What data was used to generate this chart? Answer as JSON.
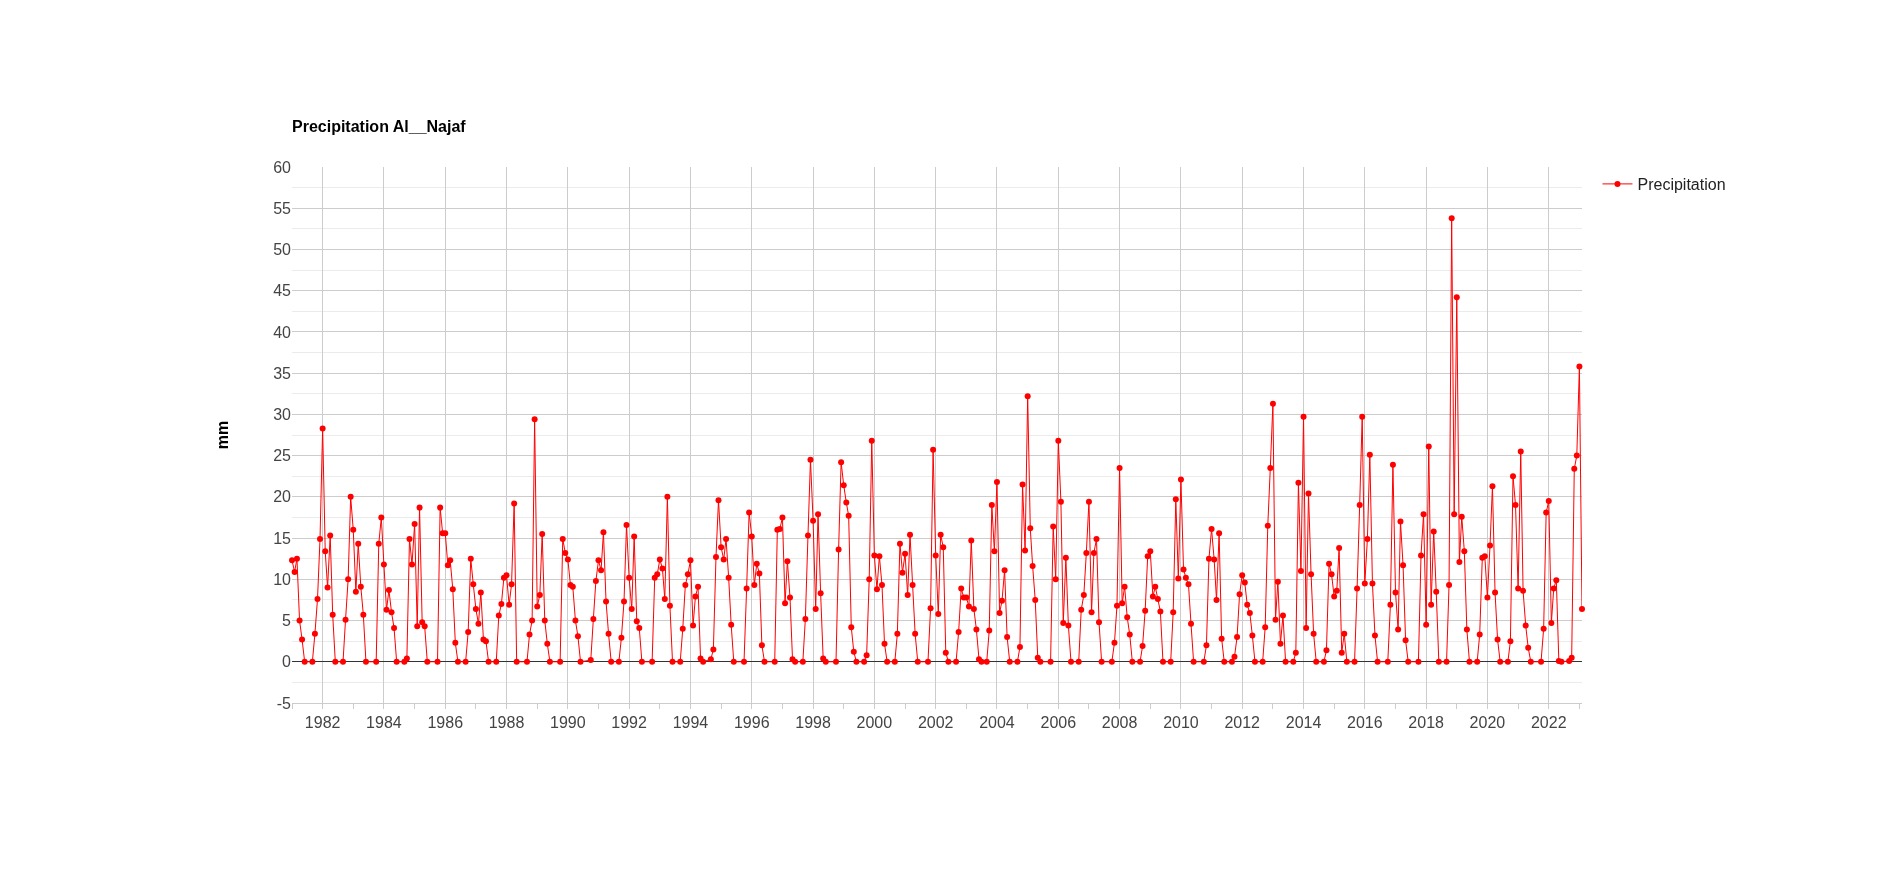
{
  "chart_data": {
    "type": "line",
    "title": "Precipitation Al__Najaf",
    "ylabel": "mm",
    "xlim": [
      "1981-01",
      "2023-02"
    ],
    "xticks": [
      {
        "value": "1981",
        "label": null
      },
      "1982",
      {
        "value": "1983",
        "label": null
      },
      "1984",
      {
        "value": "1985",
        "label": null
      },
      "1986",
      {
        "value": "1987",
        "label": null
      },
      "1988",
      {
        "value": "1989",
        "label": null
      },
      "1990",
      {
        "value": "1991",
        "label": null
      },
      "1992",
      {
        "value": "1993",
        "label": null
      },
      "1994",
      {
        "value": "1995",
        "label": null
      },
      "1996",
      {
        "value": "1997",
        "label": null
      },
      "1998",
      {
        "value": "1999",
        "label": null
      },
      "2000",
      {
        "value": "2001",
        "label": null
      },
      "2002",
      {
        "value": "2003",
        "label": null
      },
      "2004",
      {
        "value": "2005",
        "label": null
      },
      "2006",
      {
        "value": "2007",
        "label": null
      },
      "2008",
      {
        "value": "2009",
        "label": null
      },
      "2010",
      {
        "value": "2011",
        "label": null
      },
      "2012",
      {
        "value": "2013",
        "label": null
      },
      "2014",
      {
        "value": "2015",
        "label": null
      },
      "2016",
      {
        "value": "2017",
        "label": null
      },
      "2018",
      {
        "value": "2019",
        "label": null
      },
      "2020",
      {
        "value": "2021",
        "label": null
      },
      "2022",
      {
        "value": "2023",
        "label": null
      }
    ],
    "ylim": [
      -5,
      60
    ],
    "yticks": [
      -5,
      0,
      5,
      10,
      15,
      20,
      25,
      30,
      35,
      40,
      45,
      50,
      55,
      60
    ],
    "grid": true,
    "legend": "top right",
    "marker": "circle",
    "line_style": "solid",
    "series": [
      {
        "name": "Precipitation",
        "color": "#ff0000",
        "x": [
          "1981-01",
          "1981-02",
          "1981-03",
          "1981-04",
          "1981-05",
          "1981-06",
          "1981-09",
          "1981-10",
          "1981-11",
          "1981-12",
          "1982-01",
          "1982-02",
          "1982-03",
          "1982-04",
          "1982-05",
          "1982-06",
          "1982-09",
          "1982-10",
          "1982-11",
          "1982-12",
          "1983-01",
          "1983-02",
          "1983-03",
          "1983-04",
          "1983-05",
          "1983-06",
          "1983-10",
          "1983-11",
          "1983-12",
          "1984-01",
          "1984-02",
          "1984-03",
          "1984-04",
          "1984-05",
          "1984-06",
          "1984-09",
          "1984-10",
          "1984-11",
          "1984-12",
          "1985-01",
          "1985-02",
          "1985-03",
          "1985-04",
          "1985-05",
          "1985-06",
          "1985-10",
          "1985-11",
          "1985-12",
          "1986-01",
          "1986-02",
          "1986-03",
          "1986-04",
          "1986-05",
          "1986-06",
          "1986-09",
          "1986-10",
          "1986-11",
          "1986-12",
          "1987-01",
          "1987-02",
          "1987-03",
          "1987-04",
          "1987-05",
          "1987-06",
          "1987-09",
          "1987-10",
          "1987-11",
          "1987-12",
          "1988-01",
          "1988-02",
          "1988-03",
          "1988-04",
          "1988-05",
          "1988-09",
          "1988-10",
          "1988-11",
          "1988-12",
          "1989-01",
          "1989-02",
          "1989-03",
          "1989-04",
          "1989-05",
          "1989-06",
          "1989-10",
          "1989-11",
          "1989-12",
          "1990-01",
          "1990-02",
          "1990-03",
          "1990-04",
          "1990-05",
          "1990-06",
          "1990-10",
          "1990-11",
          "1990-12",
          "1991-01",
          "1991-02",
          "1991-03",
          "1991-04",
          "1991-05",
          "1991-06",
          "1991-09",
          "1991-10",
          "1991-11",
          "1991-12",
          "1992-01",
          "1992-02",
          "1992-03",
          "1992-04",
          "1992-05",
          "1992-06",
          "1992-10",
          "1992-11",
          "1992-12",
          "1993-01",
          "1993-02",
          "1993-03",
          "1993-04",
          "1993-05",
          "1993-06",
          "1993-09",
          "1993-10",
          "1993-11",
          "1993-12",
          "1994-01",
          "1994-02",
          "1994-03",
          "1994-04",
          "1994-05",
          "1994-06",
          "1994-09",
          "1994-10",
          "1994-11",
          "1994-12",
          "1995-01",
          "1995-02",
          "1995-03",
          "1995-04",
          "1995-05",
          "1995-06",
          "1995-10",
          "1995-11",
          "1995-12",
          "1996-01",
          "1996-02",
          "1996-03",
          "1996-04",
          "1996-05",
          "1996-06",
          "1996-10",
          "1996-11",
          "1996-12",
          "1997-01",
          "1997-02",
          "1997-03",
          "1997-04",
          "1997-05",
          "1997-06",
          "1997-09",
          "1997-10",
          "1997-11",
          "1997-12",
          "1998-01",
          "1998-02",
          "1998-03",
          "1998-04",
          "1998-05",
          "1998-06",
          "1998-10",
          "1998-11",
          "1998-12",
          "1999-01",
          "1999-02",
          "1999-03",
          "1999-04",
          "1999-05",
          "1999-06",
          "1999-09",
          "1999-10",
          "1999-11",
          "1999-12",
          "2000-01",
          "2000-02",
          "2000-03",
          "2000-04",
          "2000-05",
          "2000-06",
          "2000-09",
          "2000-10",
          "2000-11",
          "2000-12",
          "2001-01",
          "2001-02",
          "2001-03",
          "2001-04",
          "2001-05",
          "2001-06",
          "2001-10",
          "2001-11",
          "2001-12",
          "2002-01",
          "2002-02",
          "2002-03",
          "2002-04",
          "2002-05",
          "2002-06",
          "2002-09",
          "2002-10",
          "2002-11",
          "2002-12",
          "2003-01",
          "2003-02",
          "2003-03",
          "2003-04",
          "2003-05",
          "2003-06",
          "2003-07",
          "2003-09",
          "2003-10",
          "2003-11",
          "2003-12",
          "2004-01",
          "2004-02",
          "2004-03",
          "2004-04",
          "2004-05",
          "2004-06",
          "2004-09",
          "2004-10",
          "2004-11",
          "2004-12",
          "2005-01",
          "2005-02",
          "2005-03",
          "2005-04",
          "2005-05",
          "2005-06",
          "2005-10",
          "2005-11",
          "2005-12",
          "2006-01",
          "2006-02",
          "2006-03",
          "2006-04",
          "2006-05",
          "2006-06",
          "2006-09",
          "2006-10",
          "2006-11",
          "2006-12",
          "2007-01",
          "2007-02",
          "2007-03",
          "2007-04",
          "2007-05",
          "2007-06",
          "2007-10",
          "2007-11",
          "2007-12",
          "2008-01",
          "2008-02",
          "2008-03",
          "2008-04",
          "2008-05",
          "2008-06",
          "2008-09",
          "2008-10",
          "2008-11",
          "2008-12",
          "2009-01",
          "2009-02",
          "2009-03",
          "2009-04",
          "2009-05",
          "2009-06",
          "2009-09",
          "2009-10",
          "2009-11",
          "2009-12",
          "2010-01",
          "2010-02",
          "2010-03",
          "2010-04",
          "2010-05",
          "2010-06",
          "2010-10",
          "2010-11",
          "2010-12",
          "2011-01",
          "2011-02",
          "2011-03",
          "2011-04",
          "2011-05",
          "2011-06",
          "2011-09",
          "2011-10",
          "2011-11",
          "2011-12",
          "2012-01",
          "2012-02",
          "2012-03",
          "2012-04",
          "2012-05",
          "2012-06",
          "2012-09",
          "2012-10",
          "2012-11",
          "2012-12",
          "2013-01",
          "2013-02",
          "2013-03",
          "2013-04",
          "2013-05",
          "2013-06",
          "2013-09",
          "2013-10",
          "2013-11",
          "2013-12",
          "2014-01",
          "2014-02",
          "2014-03",
          "2014-04",
          "2014-05",
          "2014-06",
          "2014-09",
          "2014-10",
          "2014-11",
          "2014-12",
          "2015-01",
          "2015-02",
          "2015-03",
          "2015-04",
          "2015-05",
          "2015-06",
          "2015-09",
          "2015-10",
          "2015-11",
          "2015-12",
          "2016-01",
          "2016-02",
          "2016-03",
          "2016-04",
          "2016-05",
          "2016-06",
          "2016-10",
          "2016-11",
          "2016-12",
          "2017-01",
          "2017-02",
          "2017-03",
          "2017-04",
          "2017-05",
          "2017-06",
          "2017-10",
          "2017-11",
          "2017-12",
          "2018-01",
          "2018-02",
          "2018-03",
          "2018-04",
          "2018-05",
          "2018-06",
          "2018-09",
          "2018-10",
          "2018-11",
          "2018-12",
          "2019-01",
          "2019-02",
          "2019-03",
          "2019-04",
          "2019-05",
          "2019-06",
          "2019-09",
          "2019-10",
          "2019-11",
          "2019-12",
          "2020-01",
          "2020-02",
          "2020-03",
          "2020-04",
          "2020-05",
          "2020-06",
          "2020-09",
          "2020-10",
          "2020-11",
          "2020-12",
          "2021-01",
          "2021-02",
          "2021-03",
          "2021-04",
          "2021-05",
          "2021-06",
          "2021-10",
          "2021-11",
          "2021-12",
          "2022-01",
          "2022-02",
          "2022-03",
          "2022-04",
          "2022-05",
          "2022-06",
          "2022-09",
          "2022-10",
          "2022-11",
          "2022-12",
          "2023-01",
          "2023-02"
        ],
        "values": [
          12.3,
          10.9,
          12.5,
          5.0,
          2.7,
          0,
          0,
          3.4,
          7.6,
          14.9,
          28.3,
          13.4,
          9.0,
          15.3,
          5.7,
          0,
          0,
          5.1,
          10.0,
          20.0,
          16.0,
          8.5,
          14.3,
          9.1,
          5.7,
          0,
          0,
          14.3,
          17.5,
          11.8,
          6.3,
          8.7,
          6.0,
          4.1,
          0,
          0,
          0.4,
          14.9,
          11.8,
          16.7,
          4.3,
          18.7,
          4.8,
          4.3,
          0,
          0,
          18.7,
          15.6,
          15.6,
          11.7,
          12.3,
          8.8,
          2.3,
          0,
          0,
          3.6,
          12.5,
          9.4,
          6.4,
          4.6,
          8.4,
          2.7,
          2.5,
          0,
          0,
          5.6,
          7.0,
          10.2,
          10.5,
          6.9,
          9.4,
          19.2,
          0,
          0,
          3.3,
          5.0,
          29.4,
          6.7,
          8.1,
          15.5,
          5.0,
          2.2,
          0,
          0,
          14.9,
          13.2,
          12.4,
          9.3,
          9.1,
          5.0,
          3.1,
          0,
          0.2,
          5.2,
          9.8,
          12.3,
          11.1,
          15.7,
          7.3,
          3.4,
          0,
          0,
          2.9,
          7.3,
          16.6,
          10.2,
          6.4,
          15.2,
          4.9,
          4.1,
          0,
          0,
          10.2,
          10.6,
          12.4,
          11.3,
          7.6,
          20.0,
          6.8,
          0,
          0,
          4.0,
          9.3,
          10.6,
          12.3,
          4.4,
          7.9,
          9.1,
          0.4,
          0,
          0.3,
          1.5,
          12.7,
          19.6,
          13.9,
          12.4,
          14.9,
          10.2,
          4.5,
          0,
          0,
          8.9,
          18.1,
          15.2,
          9.3,
          11.9,
          10.7,
          2.0,
          0,
          0,
          16.0,
          16.1,
          17.5,
          7.1,
          12.2,
          7.8,
          0.3,
          0,
          0,
          5.2,
          15.3,
          24.5,
          17.1,
          6.4,
          17.9,
          8.3,
          0.4,
          0,
          0,
          13.6,
          24.2,
          21.4,
          19.3,
          17.7,
          4.2,
          1.2,
          0,
          0,
          0.8,
          10.0,
          26.8,
          12.9,
          8.8,
          12.8,
          9.3,
          2.2,
          0,
          0,
          3.4,
          14.3,
          10.8,
          13.1,
          8.1,
          15.4,
          9.3,
          3.4,
          0,
          0,
          6.5,
          25.7,
          12.9,
          5.8,
          15.4,
          13.9,
          1.1,
          0,
          0,
          3.6,
          8.9,
          7.8,
          7.8,
          6.7,
          14.7,
          6.4,
          3.9,
          0.3,
          0,
          0,
          3.8,
          19.0,
          13.4,
          21.8,
          5.9,
          7.4,
          11.1,
          3.0,
          0,
          0,
          1.8,
          21.5,
          13.5,
          32.2,
          16.2,
          11.6,
          7.5,
          0.5,
          0,
          0,
          16.4,
          10.0,
          26.8,
          19.4,
          4.7,
          12.6,
          4.4,
          0,
          0,
          6.3,
          8.1,
          13.2,
          19.4,
          6.0,
          13.2,
          14.9,
          4.8,
          0,
          0,
          2.3,
          6.8,
          23.5,
          7.1,
          9.1,
          5.4,
          3.3,
          0,
          0,
          1.9,
          6.2,
          12.8,
          13.4,
          7.9,
          9.1,
          7.6,
          6.1,
          0,
          0,
          6.0,
          19.7,
          10.1,
          22.1,
          11.2,
          10.2,
          9.4,
          4.6,
          0,
          0,
          2.0,
          12.5,
          16.1,
          12.4,
          7.5,
          15.6,
          2.8,
          0,
          0,
          0.6,
          3.0,
          8.2,
          10.5,
          9.6,
          6.9,
          5.9,
          3.2,
          0,
          0,
          4.2,
          16.5,
          23.5,
          31.3,
          5.1,
          9.7,
          2.2,
          5.6,
          0,
          0,
          1.1,
          21.7,
          11.0,
          29.7,
          4.1,
          20.4,
          10.6,
          3.4,
          0,
          0,
          1.4,
          11.9,
          10.6,
          7.9,
          8.6,
          13.8,
          1.1,
          3.4,
          0,
          0,
          8.9,
          19.0,
          29.7,
          9.5,
          14.9,
          25.1,
          9.5,
          3.2,
          0,
          0,
          6.9,
          23.9,
          8.4,
          3.9,
          17.0,
          11.7,
          2.6,
          0,
          0,
          12.9,
          17.9,
          4.5,
          26.1,
          6.9,
          15.8,
          8.5,
          0,
          0,
          9.3,
          53.8,
          17.9,
          44.2,
          12.1,
          17.6,
          13.4,
          3.9,
          0,
          0,
          3.3,
          12.6,
          12.8,
          7.8,
          14.1,
          21.3,
          8.4,
          2.7,
          0,
          0,
          2.5,
          22.5,
          19.0,
          8.9,
          25.5,
          8.6,
          4.4,
          1.7,
          0,
          0,
          4.0,
          18.1,
          19.5,
          4.7,
          8.9,
          9.9,
          0.1,
          0,
          0.1,
          0.5,
          23.4,
          25.0,
          35.8,
          6.4
        ]
      }
    ]
  }
}
